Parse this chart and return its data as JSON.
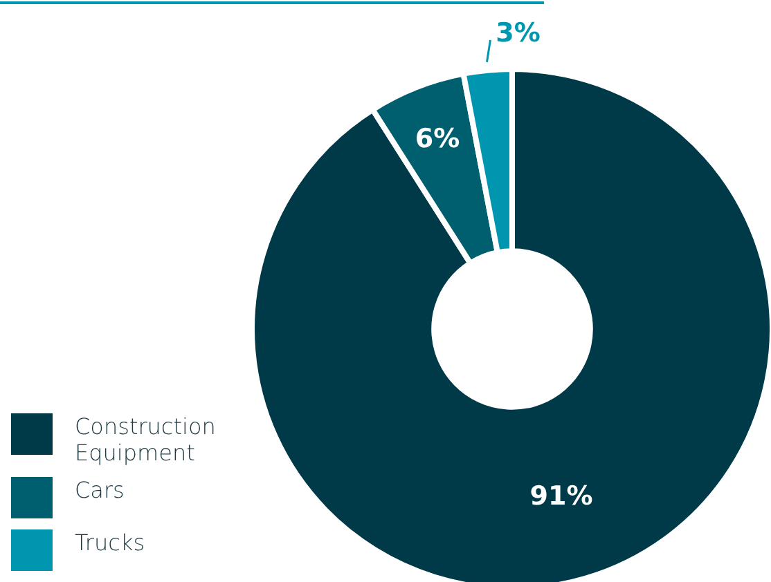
{
  "chart_data": {
    "type": "donut",
    "categories": [
      "Construction\nEquipment",
      "Cars",
      "Trucks"
    ],
    "values": [
      91,
      6,
      3
    ],
    "colors": [
      "#003947",
      "#005f6e",
      "#0096b0"
    ],
    "value_labels": [
      "91%",
      "6%",
      "3%"
    ],
    "legend": "bottom left"
  }
}
